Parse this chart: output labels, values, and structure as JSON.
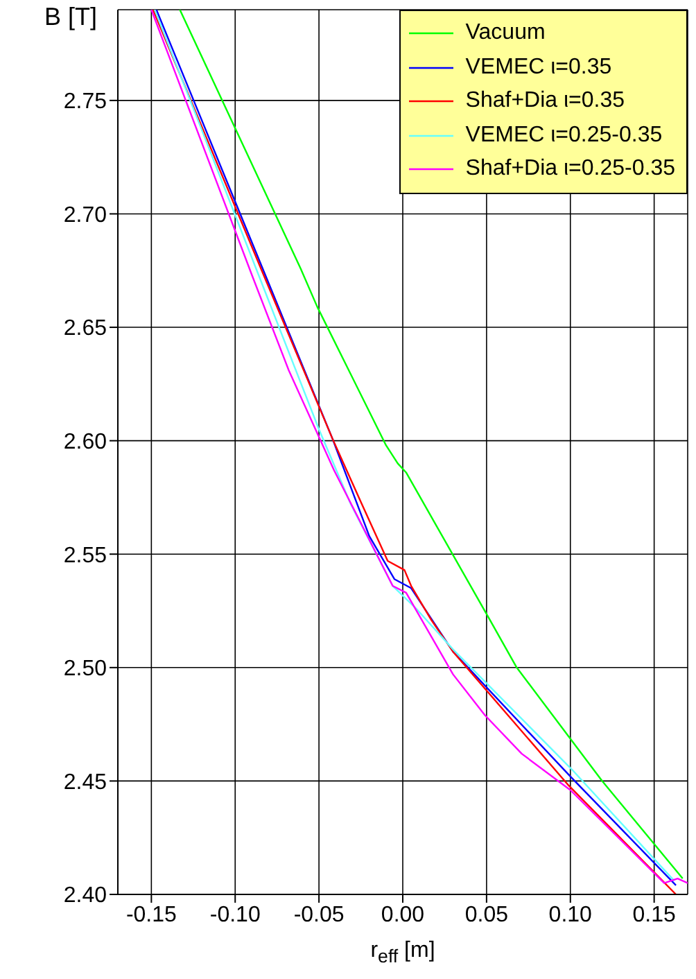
{
  "chart_data": {
    "type": "line",
    "xlabel": "r$_{eff}$ [m]",
    "ylabel": "B [T]",
    "xlim": [
      -0.17,
      0.17
    ],
    "ylim": [
      2.4,
      2.79
    ],
    "xticks": [
      {
        "value": -0.15,
        "label": "-0.15"
      },
      {
        "value": -0.1,
        "label": "-0.10"
      },
      {
        "value": -0.05,
        "label": "-0.05"
      },
      {
        "value": 0,
        "label": "0.00"
      },
      {
        "value": 0.05,
        "label": "0.05"
      },
      {
        "value": 0.1,
        "label": "0.10"
      },
      {
        "value": 0.15,
        "label": "0.15"
      }
    ],
    "yticks": [
      {
        "value": 2.4,
        "label": "2.40"
      },
      {
        "value": 2.45,
        "label": "2.45"
      },
      {
        "value": 2.5,
        "label": "2.50"
      },
      {
        "value": 2.55,
        "label": "2.55"
      },
      {
        "value": 2.6,
        "label": "2.60"
      },
      {
        "value": 2.65,
        "label": "2.65"
      },
      {
        "value": 2.7,
        "label": "2.70"
      },
      {
        "value": 2.75,
        "label": "2.75"
      }
    ],
    "grid": true,
    "legend": "top right",
    "marker": "none",
    "line_style": "solid",
    "series": [
      {
        "name": "Vacuum",
        "color": "#00ff00",
        "x": [
          -0.133,
          -0.061,
          -0.051,
          -0.01,
          -0.003,
          0.002,
          0.052,
          0.068,
          0.119,
          0.167
        ],
        "values": [
          2.79,
          2.676,
          2.659,
          2.598,
          2.59,
          2.586,
          2.521,
          2.5,
          2.45,
          2.407
        ]
      },
      {
        "name": "VEMEC ι=0.35",
        "color": "#0000ff",
        "x": [
          -0.147,
          -0.082,
          -0.042,
          -0.02,
          -0.005,
          0.005,
          0.03,
          0.1,
          0.163
        ],
        "values": [
          2.79,
          2.673,
          2.601,
          2.558,
          2.539,
          2.535,
          2.507,
          2.452,
          2.404
        ]
      },
      {
        "name": "Shaf+Dia ι=0.35",
        "color": "#ff0000",
        "x": [
          -0.149,
          -0.083,
          -0.042,
          -0.025,
          -0.009,
          0.001,
          0.005,
          0.017,
          0.03,
          0.099,
          0.163
        ],
        "values": [
          2.79,
          2.673,
          2.601,
          2.573,
          2.547,
          2.543,
          2.536,
          2.521,
          2.507,
          2.448,
          2.4
        ]
      },
      {
        "name": "VEMEC ι=0.25-0.35",
        "color": "#66ffff",
        "x": [
          -0.148,
          -0.086,
          -0.05,
          -0.031,
          -0.006,
          0.008,
          0.03,
          0.101,
          0.162
        ],
        "values": [
          2.79,
          2.673,
          2.605,
          2.572,
          2.536,
          2.526,
          2.508,
          2.455,
          2.406
        ]
      },
      {
        "name": "Shaf+Dia ι=0.25-0.35",
        "color": "#ff00ff",
        "x": [
          -0.15,
          -0.09,
          -0.068,
          -0.041,
          -0.006,
          0.002,
          0.03,
          0.049,
          0.071,
          0.1,
          0.156,
          0.164,
          0.17
        ],
        "values": [
          2.79,
          2.673,
          2.631,
          2.587,
          2.536,
          2.533,
          2.497,
          2.479,
          2.462,
          2.446,
          2.405,
          2.407,
          2.405
        ]
      }
    ]
  }
}
